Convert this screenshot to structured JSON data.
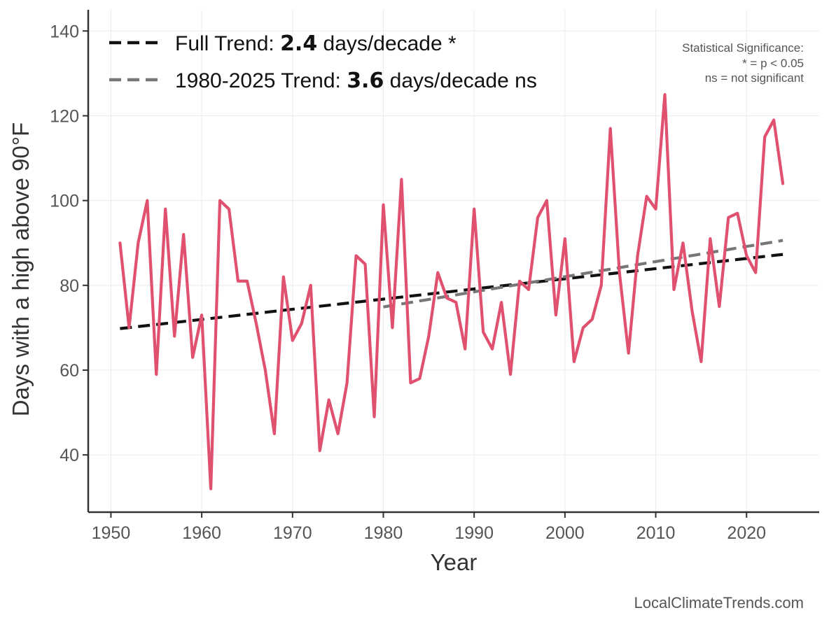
{
  "chart_data": {
    "type": "line",
    "xlabel": "Year",
    "ylabel": "Days with a high above 90°F",
    "xlim": [
      1947.5,
      2028
    ],
    "ylim": [
      26.5,
      145
    ],
    "xticks": [
      1950,
      1960,
      1970,
      1980,
      1990,
      2000,
      2010,
      2020
    ],
    "yticks": [
      40,
      60,
      80,
      100,
      120,
      140
    ],
    "grid": true,
    "series": [
      {
        "name": "Days above 90°F",
        "color": "#e0506f",
        "x": [
          1951,
          1952,
          1953,
          1954,
          1955,
          1956,
          1957,
          1958,
          1959,
          1960,
          1961,
          1962,
          1963,
          1964,
          1965,
          1966,
          1967,
          1968,
          1969,
          1970,
          1971,
          1972,
          1973,
          1974,
          1975,
          1976,
          1977,
          1978,
          1979,
          1980,
          1981,
          1982,
          1983,
          1984,
          1985,
          1986,
          1987,
          1988,
          1989,
          1990,
          1991,
          1992,
          1993,
          1994,
          1995,
          1996,
          1997,
          1998,
          1999,
          2000,
          2001,
          2002,
          2003,
          2004,
          2005,
          2006,
          2007,
          2008,
          2009,
          2010,
          2011,
          2012,
          2013,
          2014,
          2015,
          2016,
          2017,
          2018,
          2019,
          2020,
          2021,
          2022,
          2023,
          2024
        ],
        "values": [
          90,
          70,
          90,
          100,
          59,
          98,
          68,
          92,
          63,
          73,
          32,
          100,
          98,
          81,
          81,
          71,
          60,
          45,
          82,
          67,
          71,
          80,
          41,
          53,
          45,
          57,
          87,
          85,
          49,
          99,
          70,
          105,
          57,
          58,
          68,
          83,
          77,
          76,
          65,
          98,
          69,
          65,
          76,
          59,
          81,
          79,
          96,
          100,
          73,
          91,
          62,
          70,
          72,
          80,
          117,
          83,
          64,
          87,
          101,
          98,
          125,
          79,
          90,
          74,
          62,
          91,
          75,
          96,
          97,
          87,
          83,
          115,
          119,
          104
        ]
      }
    ],
    "trends": [
      {
        "name": "Full Trend",
        "color": "#111111",
        "x": [
          1951,
          2024
        ],
        "y": [
          69.8,
          87.3
        ]
      },
      {
        "name": "1980-2025 Trend",
        "color": "#777777",
        "x": [
          1980,
          2024
        ],
        "y": [
          74.9,
          90.6
        ]
      }
    ],
    "legend": [
      {
        "prefix": "Full Trend: ",
        "value": "2.4",
        "suffix": " days/decade *"
      },
      {
        "prefix": "1980-2025 Trend: ",
        "value": "3.6",
        "suffix": " days/decade ns"
      }
    ],
    "significance_note": [
      "Statistical Significance:",
      "* = p < 0.05",
      "ns = not significant"
    ],
    "source": "LocalClimateTrends.com"
  }
}
